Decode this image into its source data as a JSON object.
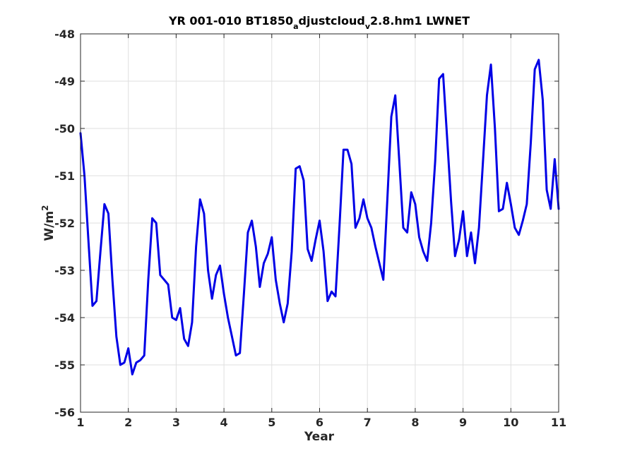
{
  "chart_data": {
    "type": "line",
    "title_parts": [
      "YR 001-010 BT1850",
      "a",
      "djustcloud",
      "v",
      "2.8.hm1 LWNET"
    ],
    "xlabel": "Year",
    "ylabel_base": "W/m",
    "ylabel_sup": "2",
    "xlim": [
      1,
      11
    ],
    "ylim": [
      -56,
      -48
    ],
    "xticks": [
      1,
      2,
      3,
      4,
      5,
      6,
      7,
      8,
      9,
      10,
      11
    ],
    "yticks": [
      -56,
      -55,
      -54,
      -53,
      -52,
      -51,
      -50,
      -49,
      -48
    ],
    "grid": true,
    "line_color": "#0000e6",
    "series": [
      {
        "x": [
          1.0,
          1.083,
          1.167,
          1.25,
          1.333,
          1.417,
          1.5,
          1.583,
          1.667,
          1.75,
          1.833,
          1.917,
          2.0,
          2.083,
          2.167,
          2.25,
          2.333,
          2.417,
          2.5,
          2.583,
          2.667,
          2.75,
          2.833,
          2.917,
          3.0,
          3.083,
          3.167,
          3.25,
          3.333,
          3.417,
          3.5,
          3.583,
          3.667,
          3.75,
          3.833,
          3.917,
          4.0,
          4.083,
          4.167,
          4.25,
          4.333,
          4.417,
          4.5,
          4.583,
          4.667,
          4.75,
          4.833,
          4.917,
          5.0,
          5.083,
          5.167,
          5.25,
          5.333,
          5.417,
          5.5,
          5.583,
          5.667,
          5.75,
          5.833,
          5.917,
          6.0,
          6.083,
          6.167,
          6.25,
          6.333,
          6.417,
          6.5,
          6.583,
          6.667,
          6.75,
          6.833,
          6.917,
          7.0,
          7.083,
          7.167,
          7.25,
          7.333,
          7.417,
          7.5,
          7.583,
          7.667,
          7.75,
          7.833,
          7.917,
          8.0,
          8.083,
          8.167,
          8.25,
          8.333,
          8.417,
          8.5,
          8.583,
          8.667,
          8.75,
          8.833,
          8.917,
          9.0,
          9.083,
          9.167,
          9.25,
          9.333,
          9.417,
          9.5,
          9.583,
          9.667,
          9.75,
          9.833,
          9.917,
          10.0,
          10.083,
          10.167,
          10.25,
          10.333,
          10.417,
          10.5,
          10.583,
          10.667,
          10.75,
          10.833,
          10.917,
          11.0
        ],
        "y": [
          -50.1,
          -51.0,
          -52.4,
          -53.75,
          -53.65,
          -52.6,
          -51.6,
          -51.8,
          -53.2,
          -54.4,
          -55.0,
          -54.95,
          -54.65,
          -55.2,
          -54.95,
          -54.9,
          -54.8,
          -53.2,
          -51.9,
          -52.0,
          -53.1,
          -53.2,
          -53.3,
          -54.0,
          -54.05,
          -53.8,
          -54.45,
          -54.6,
          -54.1,
          -52.5,
          -51.5,
          -51.8,
          -53.0,
          -53.6,
          -53.1,
          -52.9,
          -53.5,
          -54.0,
          -54.4,
          -54.8,
          -54.75,
          -53.5,
          -52.2,
          -51.95,
          -52.5,
          -53.35,
          -52.85,
          -52.65,
          -52.3,
          -53.2,
          -53.7,
          -54.1,
          -53.7,
          -52.6,
          -50.85,
          -50.8,
          -51.1,
          -52.55,
          -52.8,
          -52.35,
          -51.95,
          -52.6,
          -53.65,
          -53.45,
          -53.55,
          -52.05,
          -50.45,
          -50.45,
          -50.75,
          -52.1,
          -51.9,
          -51.5,
          -51.9,
          -52.1,
          -52.5,
          -52.85,
          -53.2,
          -51.5,
          -49.75,
          -49.3,
          -50.7,
          -52.1,
          -52.2,
          -51.35,
          -51.6,
          -52.3,
          -52.6,
          -52.8,
          -52.0,
          -50.7,
          -48.95,
          -48.85,
          -50.2,
          -51.55,
          -52.7,
          -52.35,
          -51.75,
          -52.7,
          -52.2,
          -52.85,
          -52.1,
          -50.7,
          -49.3,
          -48.65,
          -50.0,
          -51.75,
          -51.7,
          -51.15,
          -51.6,
          -52.1,
          -52.25,
          -51.95,
          -51.6,
          -50.3,
          -48.75,
          -48.55,
          -49.4,
          -51.3,
          -51.7,
          -50.65,
          -51.7
        ]
      }
    ]
  }
}
